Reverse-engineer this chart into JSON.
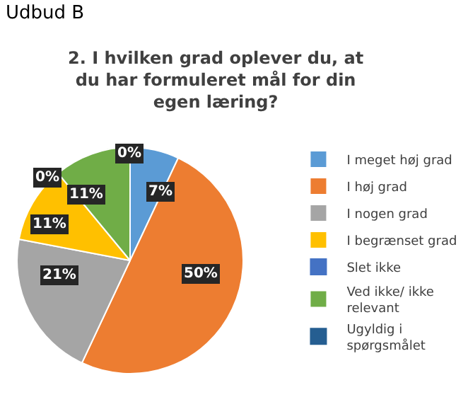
{
  "chart_data": {
    "type": "pie",
    "title": "2. I hvilken grad oplever du, at du har formuleret mål for din egen læring?",
    "categories": [
      "I meget høj grad",
      "I høj grad",
      "I nogen grad",
      "I begrænset grad",
      "Slet ikke",
      "Ved ikke/ ikke relevant",
      "Ugyldig i spørgsmålet"
    ],
    "values": [
      7,
      50,
      21,
      11,
      0,
      11,
      0
    ],
    "colors": [
      "#5b9bd5",
      "#ed7d31",
      "#a5a5a5",
      "#ffc000",
      "#4472c4",
      "#70ad47",
      "#255e91"
    ],
    "value_labels": [
      "7%",
      "50%",
      "21%",
      "11%",
      "0%",
      "11%",
      "0%"
    ],
    "annotations": [
      "Udbud B"
    ],
    "legend": "right"
  }
}
